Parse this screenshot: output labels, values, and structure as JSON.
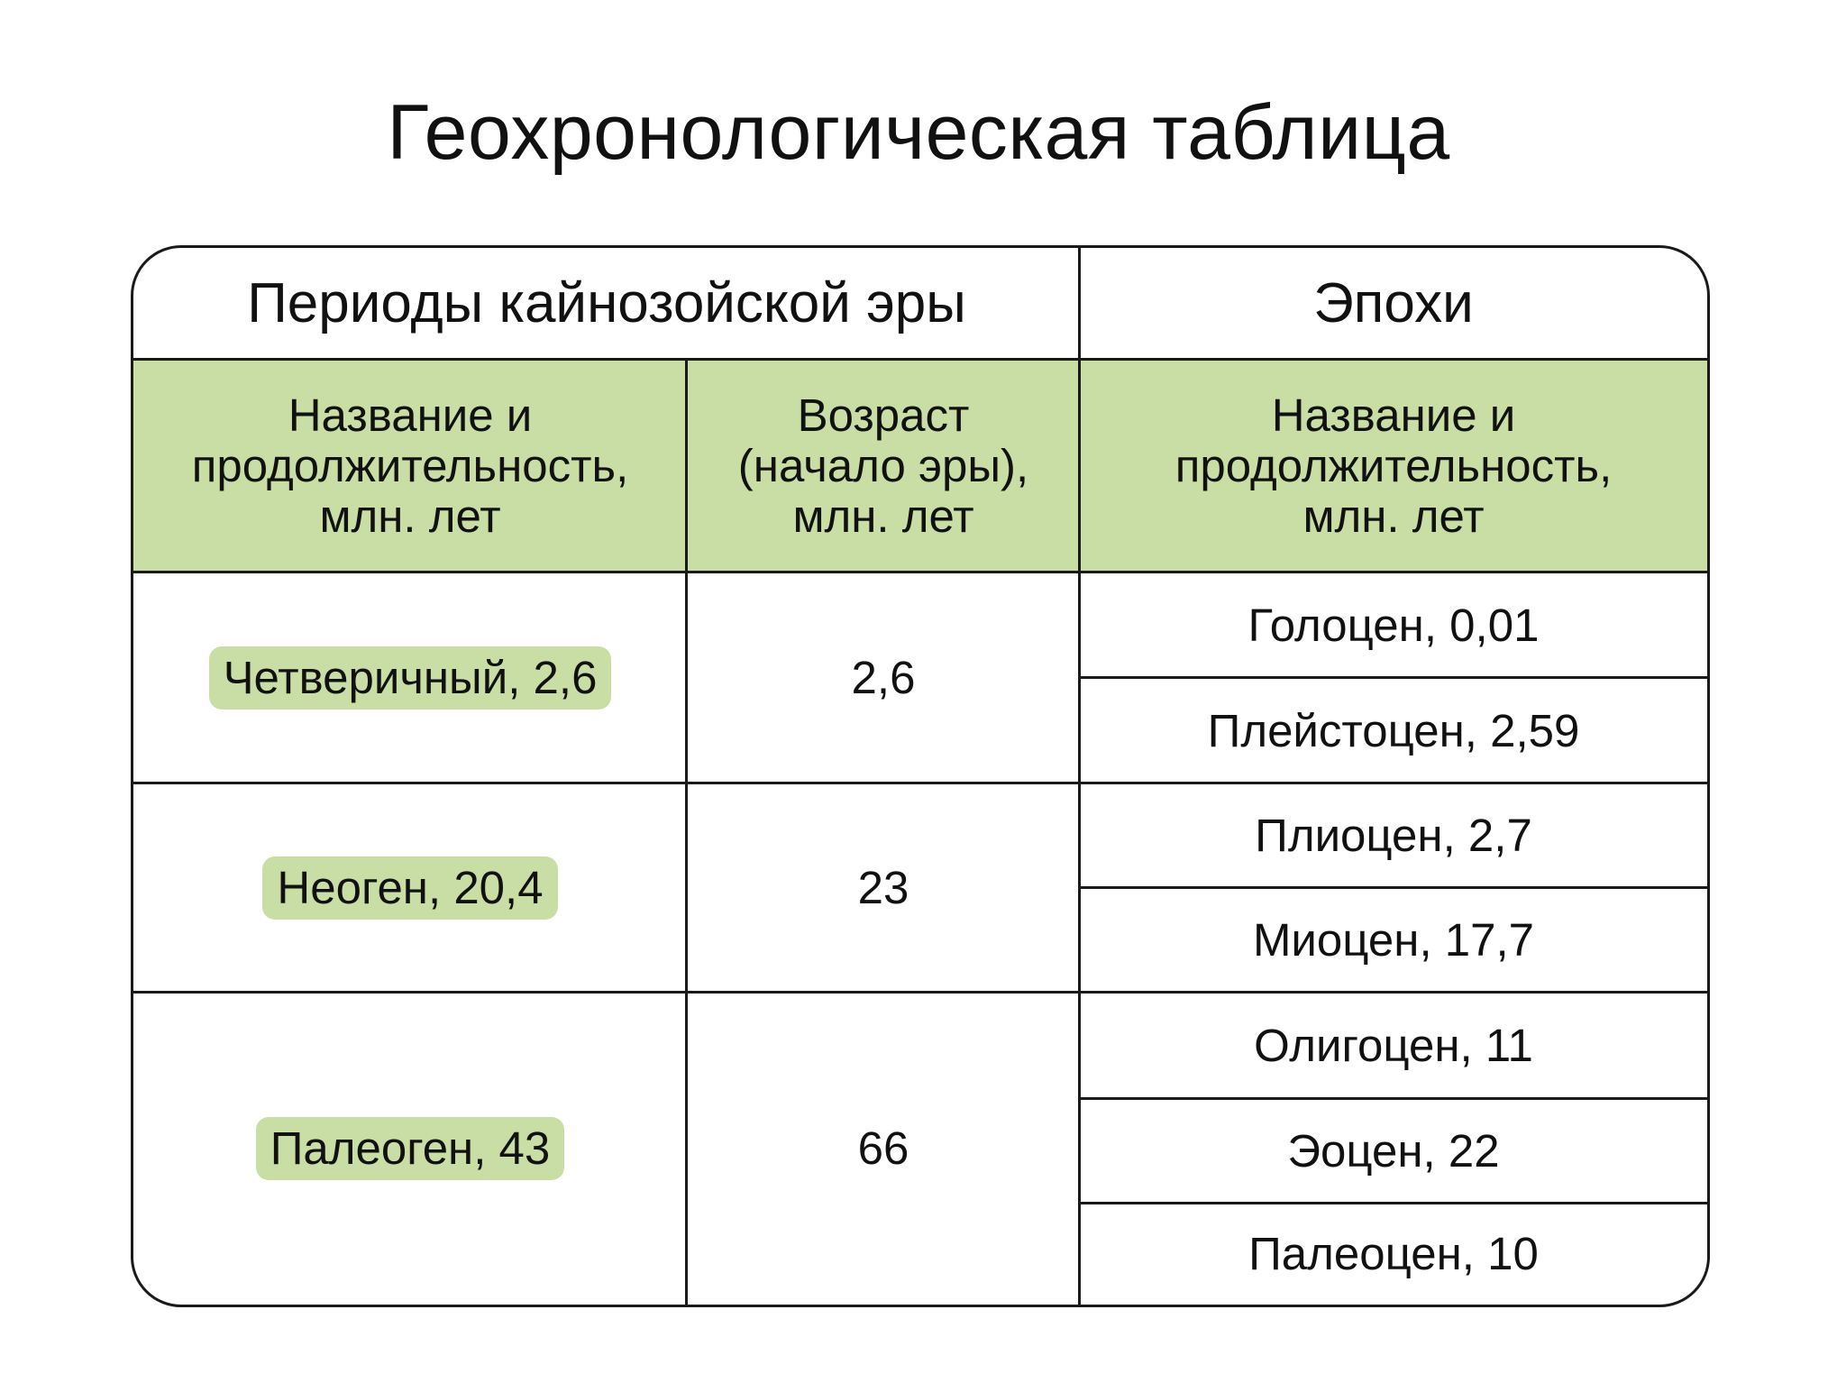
{
  "title": "Геохронологическая таблица",
  "header": {
    "periods": "Периоды кайнозойской эры",
    "epochs": "Эпохи",
    "col_name": [
      "Название и",
      "продолжительность,",
      "млн. лет"
    ],
    "col_age": [
      "Возраст",
      "(начало эры),",
      "млн. лет"
    ],
    "col_epoch_name": [
      "Название и",
      "продолжительность,",
      "млн. лет"
    ]
  },
  "colors": {
    "accent": "#c9dea5",
    "border": "#1a1a1a"
  },
  "rows": [
    {
      "period": "Четверичный, 2,6",
      "age": "2,6",
      "epochs": [
        "Голоцен, 0,01",
        "Плейстоцен, 2,59"
      ]
    },
    {
      "period": "Неоген, 20,4",
      "age": "23",
      "epochs": [
        "Плиоцен, 2,7",
        "Миоцен, 17,7"
      ]
    },
    {
      "period": "Палеоген, 43",
      "age": "66",
      "epochs": [
        "Олигоцен, 11",
        "Эоцен, 22",
        "Палеоцен, 10"
      ]
    }
  ]
}
